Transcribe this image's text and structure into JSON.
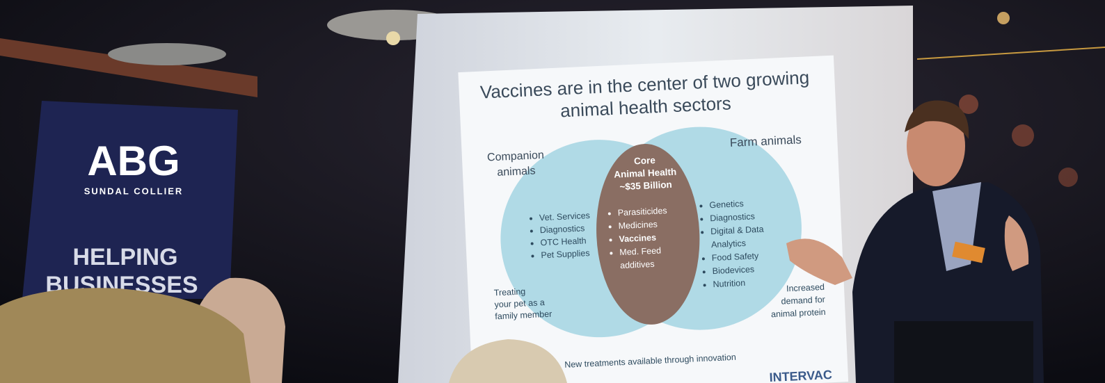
{
  "banner": {
    "logo": "ABG",
    "subtitle": "SUNDAL COLLIER",
    "tagline": [
      "HELPING",
      "BUSINESSES"
    ]
  },
  "slide": {
    "title_lines": [
      "Vaccines are in the center of two growing",
      "animal health sectors"
    ],
    "left_label": [
      "Companion",
      "animals"
    ],
    "right_label": "Farm animals",
    "core": [
      "Core",
      "Animal Health",
      "~$35 Billion"
    ],
    "left_items": [
      "Vet. Services",
      "Diagnostics",
      "OTC Health",
      "Pet Supplies"
    ],
    "center_items": [
      "Parasiticides",
      "Medicines",
      "Vaccines",
      "Med. Feed",
      "additives"
    ],
    "right_items": [
      "Genetics",
      "Diagnostics",
      "Digital & Data",
      "Analytics",
      "Food Safety",
      "Biodevices",
      "Nutrition"
    ],
    "left_note": [
      "Treating",
      "your pet as a",
      "family member"
    ],
    "right_note": [
      "Increased",
      "demand for",
      "animal protein"
    ],
    "footer": "New treatments available through innovation",
    "logo": "INTERVAC"
  }
}
